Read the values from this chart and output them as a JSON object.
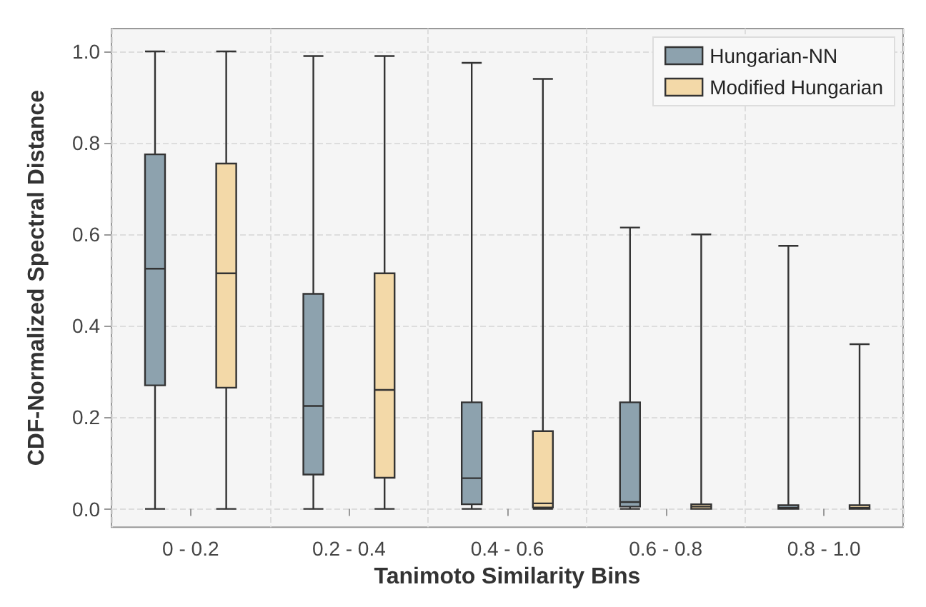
{
  "chart_data": {
    "type": "box",
    "xlabel": "Tanimoto Similarity Bins",
    "ylabel": "CDF-Normalized Spectral Distance",
    "categories": [
      "0 - 0.2",
      "0.2 - 0.4",
      "0.4 - 0.6",
      "0.6 - 0.8",
      "0.8 - 1.0"
    ],
    "series": [
      {
        "name": "Hungarian-NN",
        "color": "#8da2ae",
        "boxes": [
          {
            "low": 0,
            "q1": 0.27,
            "median": 0.525,
            "q3": 0.775,
            "high": 1.0
          },
          {
            "low": 0,
            "q1": 0.075,
            "median": 0.225,
            "q3": 0.47,
            "high": 0.99
          },
          {
            "low": 0,
            "q1": 0.01,
            "median": 0.067,
            "q3": 0.233,
            "high": 0.975
          },
          {
            "low": 0,
            "q1": 0.005,
            "median": 0.015,
            "q3": 0.233,
            "high": 0.615
          },
          {
            "low": 0,
            "q1": 0,
            "median": 0.002,
            "q3": 0.008,
            "high": 0.575
          }
        ]
      },
      {
        "name": "Modified Hungarian",
        "color": "#f3d9a8",
        "boxes": [
          {
            "low": 0,
            "q1": 0.265,
            "median": 0.515,
            "q3": 0.755,
            "high": 1.0
          },
          {
            "low": 0,
            "q1": 0.068,
            "median": 0.26,
            "q3": 0.515,
            "high": 0.99
          },
          {
            "low": 0,
            "q1": 0.003,
            "median": 0.012,
            "q3": 0.17,
            "high": 0.94
          },
          {
            "low": 0,
            "q1": 0,
            "median": 0.005,
            "q3": 0.01,
            "high": 0.6
          },
          {
            "low": 0,
            "q1": 0,
            "median": 0.002,
            "q3": 0.008,
            "high": 0.36
          }
        ]
      }
    ],
    "ylim": [
      -0.04,
      1.05
    ],
    "yticks": [
      {
        "value": 0,
        "label": "0.0"
      },
      0.2,
      0.4,
      0.6,
      0.8,
      {
        "value": 1,
        "label": "1.0"
      }
    ],
    "grid": true,
    "legend": "top right"
  }
}
